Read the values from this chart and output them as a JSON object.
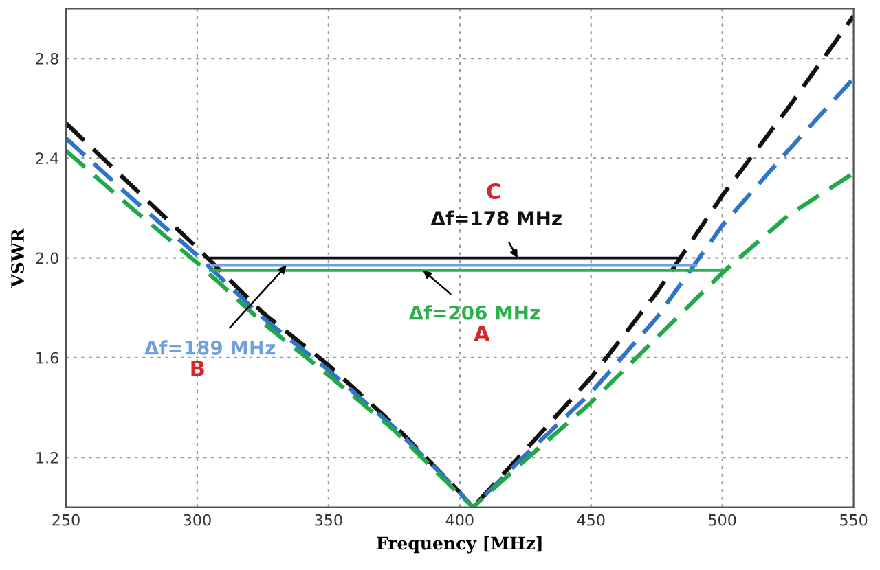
{
  "chart_data": {
    "type": "line",
    "xlabel": "Frequency [MHz]",
    "ylabel": "VSWR",
    "xlim": [
      250,
      550
    ],
    "ylim": [
      1.0,
      3.0
    ],
    "xticks": [
      250,
      300,
      350,
      400,
      450,
      500,
      550
    ],
    "yticks": [
      1.2,
      1.6,
      {
        "value": 2,
        "label": "2.0"
      },
      2.4,
      2.8
    ],
    "grid": true,
    "line_style": "dashed",
    "series": [
      {
        "color": "#111111",
        "x": [
          250,
          275,
          300,
          325,
          350,
          375,
          400,
          405,
          425,
          450,
          475,
          500,
          525,
          550
        ],
        "values": [
          2.54,
          2.29,
          2.04,
          1.78,
          1.57,
          1.33,
          1.06,
          1.0,
          1.23,
          1.52,
          1.86,
          2.25,
          2.6,
          2.97
        ]
      },
      {
        "color": "#2e75c8",
        "x": [
          250,
          275,
          300,
          325,
          350,
          375,
          400,
          405,
          425,
          450,
          475,
          500,
          525,
          550
        ],
        "values": [
          2.48,
          2.24,
          2.01,
          1.76,
          1.55,
          1.32,
          1.06,
          1.0,
          1.21,
          1.46,
          1.76,
          2.13,
          2.43,
          2.72
        ]
      },
      {
        "color": "#22a84a",
        "x": [
          250,
          275,
          300,
          325,
          350,
          375,
          400,
          405,
          425,
          450,
          475,
          500,
          525,
          550
        ],
        "values": [
          2.43,
          2.2,
          1.98,
          1.74,
          1.53,
          1.31,
          1.05,
          1.0,
          1.19,
          1.42,
          1.68,
          1.94,
          2.17,
          2.34
        ]
      },
      {
        "color": "#111111",
        "line_style": "solid",
        "x": [
          305,
          484
        ],
        "values": [
          2.0,
          2.0
        ]
      },
      {
        "color": "#6fa0e0",
        "line_style": "solid",
        "x": [
          306,
          490
        ],
        "values": [
          1.97,
          1.97
        ]
      },
      {
        "color": "#2db04b",
        "line_style": "solid",
        "x": [
          305,
          500
        ],
        "values": [
          1.95,
          1.95
        ]
      }
    ],
    "annotations": [
      {
        "text": "Δf=178 MHz",
        "x": 422,
        "y": 2.0
      },
      {
        "text": "Δf=206 MHz",
        "x": 386,
        "y": 1.95
      },
      {
        "text": "Δf=189 MHz",
        "x": 334,
        "y": 1.97
      },
      "C",
      "A",
      "B"
    ]
  }
}
